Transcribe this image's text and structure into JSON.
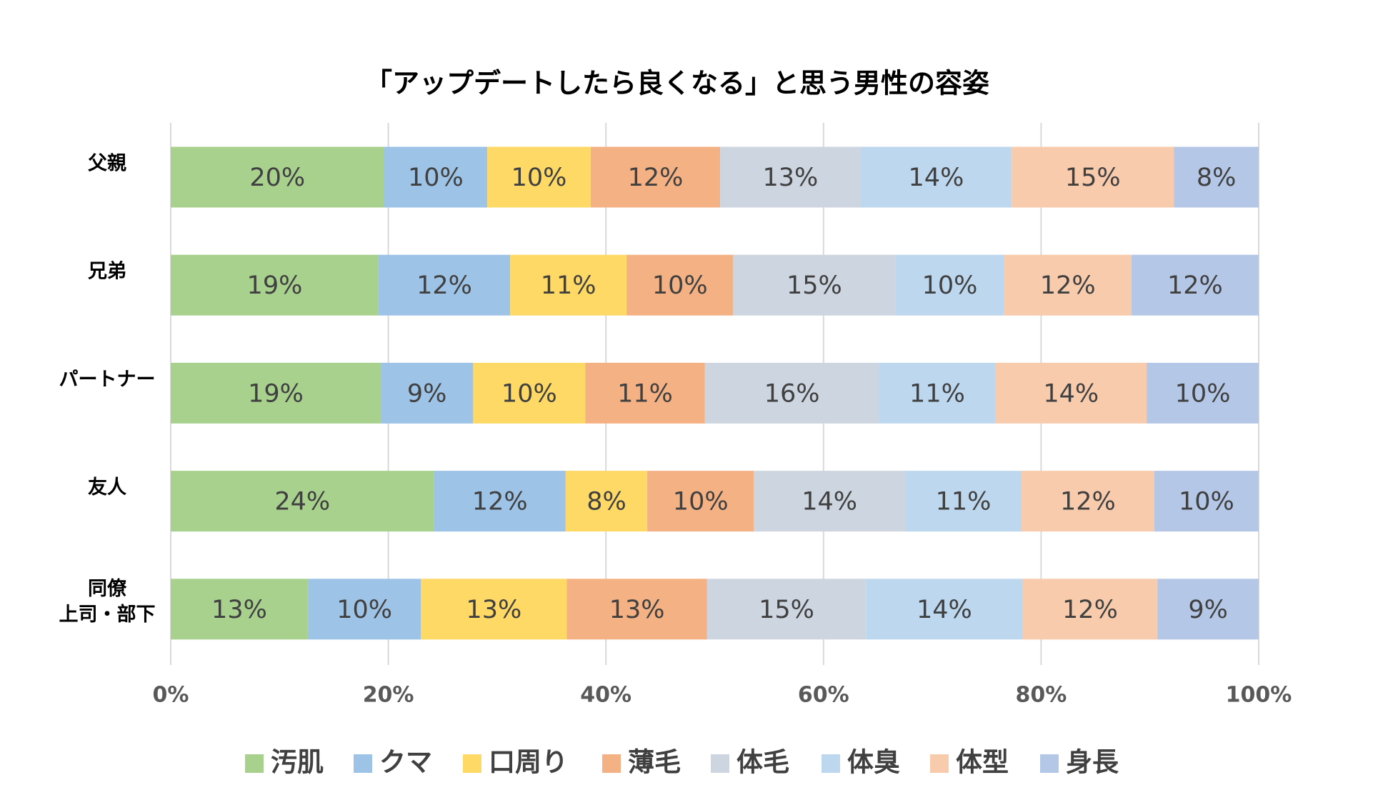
{
  "chart_data": {
    "type": "stacked-bar-horizontal",
    "title": "「アップデートしたら良くなる」と思う男性の容姿",
    "categories": [
      "父親",
      "兄弟",
      "パートナー",
      "友人",
      "同僚\n上司・部下"
    ],
    "series": [
      {
        "name": "汚肌",
        "color": "#a9d18e",
        "values": [
          19.6,
          19.1,
          19.3,
          24.2,
          12.6
        ],
        "value_labels": [
          "20%",
          "19%",
          "19%",
          "24%",
          "13%"
        ]
      },
      {
        "name": "クマ",
        "color": "#9dc3e6",
        "values": [
          9.5,
          12.1,
          8.5,
          12.1,
          10.4
        ],
        "value_labels": [
          "10%",
          "12%",
          "9%",
          "12%",
          "10%"
        ]
      },
      {
        "name": "口周り",
        "color": "#ffd966",
        "values": [
          9.5,
          10.7,
          10.3,
          7.5,
          13.4
        ],
        "value_labels": [
          "10%",
          "11%",
          "10%",
          "8%",
          "13%"
        ]
      },
      {
        "name": "薄毛",
        "color": "#f4b183",
        "values": [
          11.9,
          9.8,
          11.0,
          9.8,
          12.9
        ],
        "value_labels": [
          "12%",
          "10%",
          "11%",
          "10%",
          "13%"
        ]
      },
      {
        "name": "体毛",
        "color": "#ccd5e0",
        "values": [
          12.9,
          14.9,
          16.0,
          13.9,
          14.6
        ],
        "value_labels": [
          "13%",
          "15%",
          "16%",
          "14%",
          "15%"
        ]
      },
      {
        "name": "体臭",
        "color": "#bdd7ee",
        "values": [
          13.9,
          10.0,
          10.7,
          10.7,
          14.4
        ],
        "value_labels": [
          "14%",
          "10%",
          "11%",
          "11%",
          "14%"
        ]
      },
      {
        "name": "体型",
        "color": "#f8cbad",
        "values": [
          14.9,
          11.7,
          13.9,
          12.2,
          12.4
        ],
        "value_labels": [
          "15%",
          "12%",
          "14%",
          "12%",
          "12%"
        ]
      },
      {
        "name": "身長",
        "color": "#b4c7e7",
        "values": [
          7.8,
          11.7,
          10.3,
          9.6,
          9.3
        ],
        "value_labels": [
          "8%",
          "12%",
          "10%",
          "10%",
          "9%"
        ]
      }
    ],
    "xlim": [
      0,
      100
    ],
    "xticks": [
      {
        "value": 0,
        "label": "0%"
      },
      {
        "value": 20,
        "label": "20%"
      },
      {
        "value": 40,
        "label": "40%"
      },
      {
        "value": 60,
        "label": "60%"
      },
      {
        "value": 80,
        "label": "80%"
      },
      {
        "value": 100,
        "label": "100%"
      }
    ],
    "grid": true,
    "legend": "bottom"
  }
}
